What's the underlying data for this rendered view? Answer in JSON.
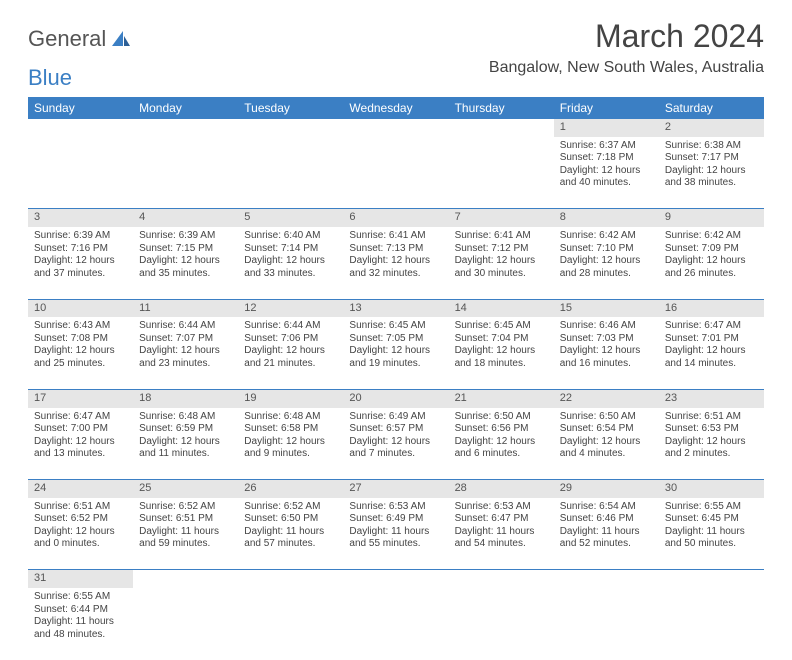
{
  "logo": {
    "text1": "General",
    "text2": "Blue"
  },
  "title": "March 2024",
  "location": "Bangalow, New South Wales, Australia",
  "colors": {
    "header_bg": "#3b7fc4",
    "daynum_bg": "#e6e6e6",
    "rule": "#3b7fc4"
  },
  "weekdays": [
    "Sunday",
    "Monday",
    "Tuesday",
    "Wednesday",
    "Thursday",
    "Friday",
    "Saturday"
  ],
  "weeks": [
    {
      "nums": [
        "",
        "",
        "",
        "",
        "",
        "1",
        "2"
      ],
      "cells": [
        null,
        null,
        null,
        null,
        null,
        {
          "sr": "Sunrise: 6:37 AM",
          "ss": "Sunset: 7:18 PM",
          "d1": "Daylight: 12 hours",
          "d2": "and 40 minutes."
        },
        {
          "sr": "Sunrise: 6:38 AM",
          "ss": "Sunset: 7:17 PM",
          "d1": "Daylight: 12 hours",
          "d2": "and 38 minutes."
        }
      ]
    },
    {
      "nums": [
        "3",
        "4",
        "5",
        "6",
        "7",
        "8",
        "9"
      ],
      "cells": [
        {
          "sr": "Sunrise: 6:39 AM",
          "ss": "Sunset: 7:16 PM",
          "d1": "Daylight: 12 hours",
          "d2": "and 37 minutes."
        },
        {
          "sr": "Sunrise: 6:39 AM",
          "ss": "Sunset: 7:15 PM",
          "d1": "Daylight: 12 hours",
          "d2": "and 35 minutes."
        },
        {
          "sr": "Sunrise: 6:40 AM",
          "ss": "Sunset: 7:14 PM",
          "d1": "Daylight: 12 hours",
          "d2": "and 33 minutes."
        },
        {
          "sr": "Sunrise: 6:41 AM",
          "ss": "Sunset: 7:13 PM",
          "d1": "Daylight: 12 hours",
          "d2": "and 32 minutes."
        },
        {
          "sr": "Sunrise: 6:41 AM",
          "ss": "Sunset: 7:12 PM",
          "d1": "Daylight: 12 hours",
          "d2": "and 30 minutes."
        },
        {
          "sr": "Sunrise: 6:42 AM",
          "ss": "Sunset: 7:10 PM",
          "d1": "Daylight: 12 hours",
          "d2": "and 28 minutes."
        },
        {
          "sr": "Sunrise: 6:42 AM",
          "ss": "Sunset: 7:09 PM",
          "d1": "Daylight: 12 hours",
          "d2": "and 26 minutes."
        }
      ]
    },
    {
      "nums": [
        "10",
        "11",
        "12",
        "13",
        "14",
        "15",
        "16"
      ],
      "cells": [
        {
          "sr": "Sunrise: 6:43 AM",
          "ss": "Sunset: 7:08 PM",
          "d1": "Daylight: 12 hours",
          "d2": "and 25 minutes."
        },
        {
          "sr": "Sunrise: 6:44 AM",
          "ss": "Sunset: 7:07 PM",
          "d1": "Daylight: 12 hours",
          "d2": "and 23 minutes."
        },
        {
          "sr": "Sunrise: 6:44 AM",
          "ss": "Sunset: 7:06 PM",
          "d1": "Daylight: 12 hours",
          "d2": "and 21 minutes."
        },
        {
          "sr": "Sunrise: 6:45 AM",
          "ss": "Sunset: 7:05 PM",
          "d1": "Daylight: 12 hours",
          "d2": "and 19 minutes."
        },
        {
          "sr": "Sunrise: 6:45 AM",
          "ss": "Sunset: 7:04 PM",
          "d1": "Daylight: 12 hours",
          "d2": "and 18 minutes."
        },
        {
          "sr": "Sunrise: 6:46 AM",
          "ss": "Sunset: 7:03 PM",
          "d1": "Daylight: 12 hours",
          "d2": "and 16 minutes."
        },
        {
          "sr": "Sunrise: 6:47 AM",
          "ss": "Sunset: 7:01 PM",
          "d1": "Daylight: 12 hours",
          "d2": "and 14 minutes."
        }
      ]
    },
    {
      "nums": [
        "17",
        "18",
        "19",
        "20",
        "21",
        "22",
        "23"
      ],
      "cells": [
        {
          "sr": "Sunrise: 6:47 AM",
          "ss": "Sunset: 7:00 PM",
          "d1": "Daylight: 12 hours",
          "d2": "and 13 minutes."
        },
        {
          "sr": "Sunrise: 6:48 AM",
          "ss": "Sunset: 6:59 PM",
          "d1": "Daylight: 12 hours",
          "d2": "and 11 minutes."
        },
        {
          "sr": "Sunrise: 6:48 AM",
          "ss": "Sunset: 6:58 PM",
          "d1": "Daylight: 12 hours",
          "d2": "and 9 minutes."
        },
        {
          "sr": "Sunrise: 6:49 AM",
          "ss": "Sunset: 6:57 PM",
          "d1": "Daylight: 12 hours",
          "d2": "and 7 minutes."
        },
        {
          "sr": "Sunrise: 6:50 AM",
          "ss": "Sunset: 6:56 PM",
          "d1": "Daylight: 12 hours",
          "d2": "and 6 minutes."
        },
        {
          "sr": "Sunrise: 6:50 AM",
          "ss": "Sunset: 6:54 PM",
          "d1": "Daylight: 12 hours",
          "d2": "and 4 minutes."
        },
        {
          "sr": "Sunrise: 6:51 AM",
          "ss": "Sunset: 6:53 PM",
          "d1": "Daylight: 12 hours",
          "d2": "and 2 minutes."
        }
      ]
    },
    {
      "nums": [
        "24",
        "25",
        "26",
        "27",
        "28",
        "29",
        "30"
      ],
      "cells": [
        {
          "sr": "Sunrise: 6:51 AM",
          "ss": "Sunset: 6:52 PM",
          "d1": "Daylight: 12 hours",
          "d2": "and 0 minutes."
        },
        {
          "sr": "Sunrise: 6:52 AM",
          "ss": "Sunset: 6:51 PM",
          "d1": "Daylight: 11 hours",
          "d2": "and 59 minutes."
        },
        {
          "sr": "Sunrise: 6:52 AM",
          "ss": "Sunset: 6:50 PM",
          "d1": "Daylight: 11 hours",
          "d2": "and 57 minutes."
        },
        {
          "sr": "Sunrise: 6:53 AM",
          "ss": "Sunset: 6:49 PM",
          "d1": "Daylight: 11 hours",
          "d2": "and 55 minutes."
        },
        {
          "sr": "Sunrise: 6:53 AM",
          "ss": "Sunset: 6:47 PM",
          "d1": "Daylight: 11 hours",
          "d2": "and 54 minutes."
        },
        {
          "sr": "Sunrise: 6:54 AM",
          "ss": "Sunset: 6:46 PM",
          "d1": "Daylight: 11 hours",
          "d2": "and 52 minutes."
        },
        {
          "sr": "Sunrise: 6:55 AM",
          "ss": "Sunset: 6:45 PM",
          "d1": "Daylight: 11 hours",
          "d2": "and 50 minutes."
        }
      ]
    },
    {
      "nums": [
        "31",
        "",
        "",
        "",
        "",
        "",
        ""
      ],
      "cells": [
        {
          "sr": "Sunrise: 6:55 AM",
          "ss": "Sunset: 6:44 PM",
          "d1": "Daylight: 11 hours",
          "d2": "and 48 minutes."
        },
        null,
        null,
        null,
        null,
        null,
        null
      ]
    }
  ]
}
